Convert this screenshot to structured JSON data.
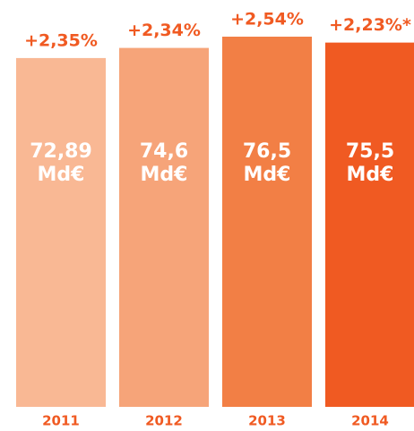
{
  "chart_data": {
    "type": "bar",
    "categories": [
      "2011",
      "2012",
      "2013",
      "2014"
    ],
    "values": [
      72.89,
      74.6,
      76.5,
      75.5
    ],
    "value_labels": [
      "72,89 Md€",
      "74,6 Md€",
      "76,5 Md€",
      "75,5 Md€"
    ],
    "annotations": [
      "+2,35%",
      "+2,34%",
      "+2,54%",
      "+2,23%*"
    ],
    "colors": [
      "#f9b894",
      "#f6a479",
      "#f27f45",
      "#f05a22"
    ],
    "ylim": [
      14,
      76.5
    ]
  }
}
